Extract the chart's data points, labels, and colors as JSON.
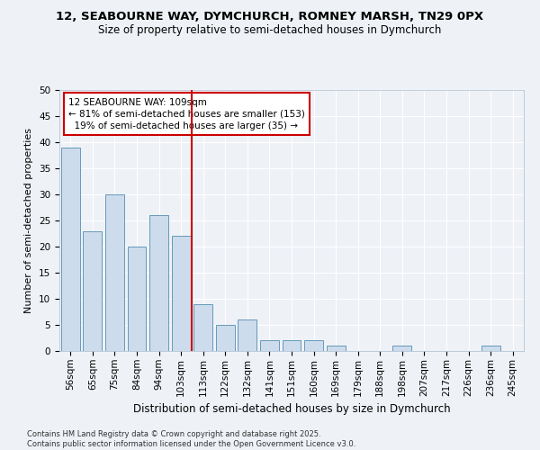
{
  "title1": "12, SEABOURNE WAY, DYMCHURCH, ROMNEY MARSH, TN29 0PX",
  "title2": "Size of property relative to semi-detached houses in Dymchurch",
  "xlabel": "Distribution of semi-detached houses by size in Dymchurch",
  "ylabel": "Number of semi-detached properties",
  "categories": [
    "56sqm",
    "65sqm",
    "75sqm",
    "84sqm",
    "94sqm",
    "103sqm",
    "113sqm",
    "122sqm",
    "132sqm",
    "141sqm",
    "151sqm",
    "160sqm",
    "169sqm",
    "179sqm",
    "188sqm",
    "198sqm",
    "207sqm",
    "217sqm",
    "226sqm",
    "236sqm",
    "245sqm"
  ],
  "values": [
    39,
    23,
    30,
    20,
    26,
    22,
    9,
    5,
    6,
    2,
    2,
    2,
    1,
    0,
    0,
    1,
    0,
    0,
    0,
    1,
    0
  ],
  "bar_color": "#ccdcec",
  "bar_edge_color": "#6699bb",
  "vline_color": "#cc0000",
  "annotation_text": "12 SEABOURNE WAY: 109sqm\n← 81% of semi-detached houses are smaller (153)\n  19% of semi-detached houses are larger (35) →",
  "annotation_box_color": "#ffffff",
  "annotation_box_edge": "#cc0000",
  "footer": "Contains HM Land Registry data © Crown copyright and database right 2025.\nContains public sector information licensed under the Open Government Licence v3.0.",
  "ylim": [
    0,
    50
  ],
  "yticks": [
    0,
    5,
    10,
    15,
    20,
    25,
    30,
    35,
    40,
    45,
    50
  ],
  "bg_color": "#eef2f7",
  "grid_color": "#ffffff",
  "title1_fontsize": 9.5,
  "title2_fontsize": 8.5,
  "xlabel_fontsize": 8.5,
  "ylabel_fontsize": 8,
  "tick_fontsize": 7.5,
  "footer_fontsize": 6
}
